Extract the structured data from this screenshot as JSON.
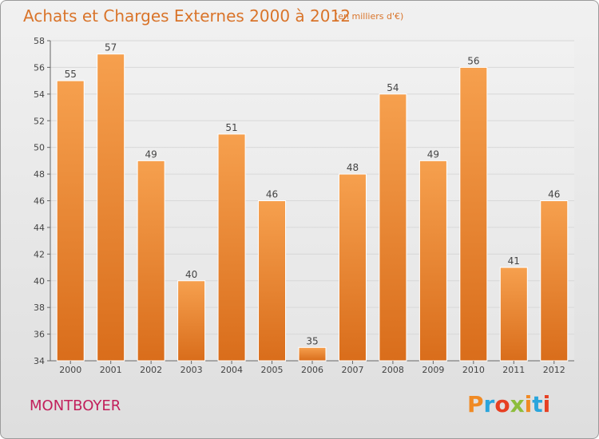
{
  "header": {
    "title": "Achats et Charges Externes 2000 à 2012",
    "subtitle": "(en milliers d'€)"
  },
  "footer": {
    "commune": "MONTBOYER",
    "brand": "Proxiti"
  },
  "colors": {
    "bar_light": "#f6a04e",
    "bar_dark": "#d96d1b",
    "axis": "#666666",
    "grid": "#d8d8d8",
    "title": "#d9742a",
    "commune": "#c21f5b"
  },
  "chart_data": {
    "type": "bar",
    "title": "Achats et Charges Externes 2000 à 2012",
    "subtitle": "(en milliers d'€)",
    "categories": [
      "2000",
      "2001",
      "2002",
      "2003",
      "2004",
      "2005",
      "2006",
      "2007",
      "2008",
      "2009",
      "2010",
      "2011",
      "2012"
    ],
    "values": [
      55,
      57,
      49,
      40,
      51,
      46,
      35,
      48,
      54,
      49,
      56,
      41,
      46
    ],
    "ylim": [
      34,
      58
    ],
    "yticks": [
      34,
      36,
      38,
      40,
      42,
      44,
      46,
      48,
      50,
      52,
      54,
      56,
      58
    ],
    "grid": true,
    "xlabel": "",
    "ylabel": ""
  }
}
